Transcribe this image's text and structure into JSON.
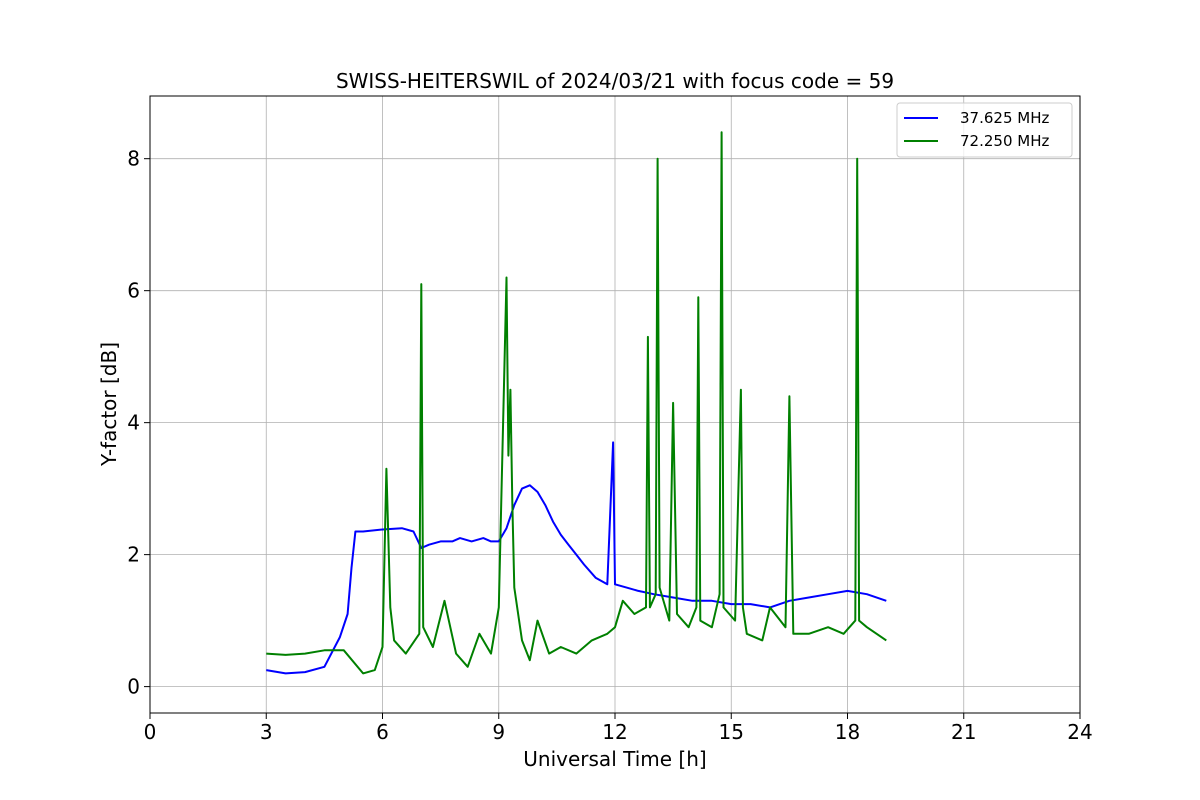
{
  "chart_data": {
    "type": "line",
    "title": "SWISS-HEITERSWIL of 2024/03/21 with focus code = 59",
    "xlabel": "Universal Time [h]",
    "ylabel": "Y-factor [dB]",
    "xlim": [
      0,
      24
    ],
    "ylim": [
      -0.4,
      8.95
    ],
    "xticks": [
      "0",
      "3",
      "6",
      "9",
      "12",
      "15",
      "18",
      "21",
      "24"
    ],
    "yticks": [
      "0",
      "2",
      "4",
      "6",
      "8"
    ],
    "grid": true,
    "legend_position": "top-right",
    "series": [
      {
        "name": "37.625 MHz",
        "color": "#0000ff",
        "x": [
          3.0,
          3.5,
          4.0,
          4.5,
          4.9,
          5.1,
          5.2,
          5.3,
          5.5,
          6.0,
          6.5,
          6.8,
          7.0,
          7.2,
          7.5,
          7.8,
          8.0,
          8.3,
          8.6,
          8.8,
          9.0,
          9.2,
          9.4,
          9.6,
          9.8,
          10.0,
          10.2,
          10.4,
          10.6,
          10.8,
          11.0,
          11.2,
          11.5,
          11.8,
          11.95,
          12.0,
          12.3,
          12.6,
          13.0,
          13.5,
          14.0,
          14.5,
          15.0,
          15.5,
          16.0,
          16.5,
          17.0,
          17.5,
          18.0,
          18.5,
          19.0
        ],
        "y": [
          0.25,
          0.2,
          0.22,
          0.3,
          0.75,
          1.1,
          1.8,
          2.35,
          2.35,
          2.38,
          2.4,
          2.35,
          2.1,
          2.15,
          2.2,
          2.2,
          2.25,
          2.2,
          2.25,
          2.2,
          2.2,
          2.4,
          2.75,
          3.0,
          3.05,
          2.95,
          2.75,
          2.5,
          2.3,
          2.15,
          2.0,
          1.85,
          1.65,
          1.55,
          3.7,
          1.55,
          1.5,
          1.45,
          1.4,
          1.35,
          1.3,
          1.3,
          1.25,
          1.25,
          1.2,
          1.3,
          1.35,
          1.4,
          1.45,
          1.4,
          1.3
        ]
      },
      {
        "name": "72.250 MHz",
        "color": "#008000",
        "x": [
          3.0,
          3.5,
          4.0,
          4.5,
          5.0,
          5.5,
          5.8,
          6.0,
          6.1,
          6.2,
          6.3,
          6.6,
          6.95,
          7.0,
          7.05,
          7.3,
          7.6,
          7.9,
          8.2,
          8.5,
          8.8,
          9.0,
          9.2,
          9.25,
          9.3,
          9.35,
          9.4,
          9.6,
          9.8,
          10.0,
          10.3,
          10.6,
          11.0,
          11.4,
          11.8,
          12.0,
          12.2,
          12.5,
          12.8,
          12.85,
          12.9,
          13.05,
          13.1,
          13.15,
          13.4,
          13.5,
          13.6,
          13.9,
          14.1,
          14.15,
          14.2,
          14.5,
          14.7,
          14.75,
          14.8,
          15.1,
          15.25,
          15.3,
          15.4,
          15.8,
          16.0,
          16.4,
          16.5,
          16.6,
          17.0,
          17.5,
          17.9,
          18.2,
          18.25,
          18.3,
          18.5,
          19.0
        ],
        "y": [
          0.5,
          0.48,
          0.5,
          0.55,
          0.55,
          0.2,
          0.25,
          0.6,
          3.3,
          1.2,
          0.7,
          0.5,
          0.8,
          6.1,
          0.9,
          0.6,
          1.3,
          0.5,
          0.3,
          0.8,
          0.5,
          1.2,
          6.2,
          3.5,
          4.5,
          2.8,
          1.5,
          0.7,
          0.4,
          1.0,
          0.5,
          0.6,
          0.5,
          0.7,
          0.8,
          0.9,
          1.3,
          1.1,
          1.2,
          5.3,
          1.2,
          1.4,
          8.0,
          1.5,
          1.0,
          4.3,
          1.1,
          0.9,
          1.2,
          5.9,
          1.0,
          0.9,
          1.4,
          8.4,
          1.2,
          1.0,
          4.5,
          1.2,
          0.8,
          0.7,
          1.2,
          0.9,
          4.4,
          0.8,
          0.8,
          0.9,
          0.8,
          1.0,
          8.0,
          1.0,
          0.9,
          0.7
        ]
      }
    ]
  }
}
